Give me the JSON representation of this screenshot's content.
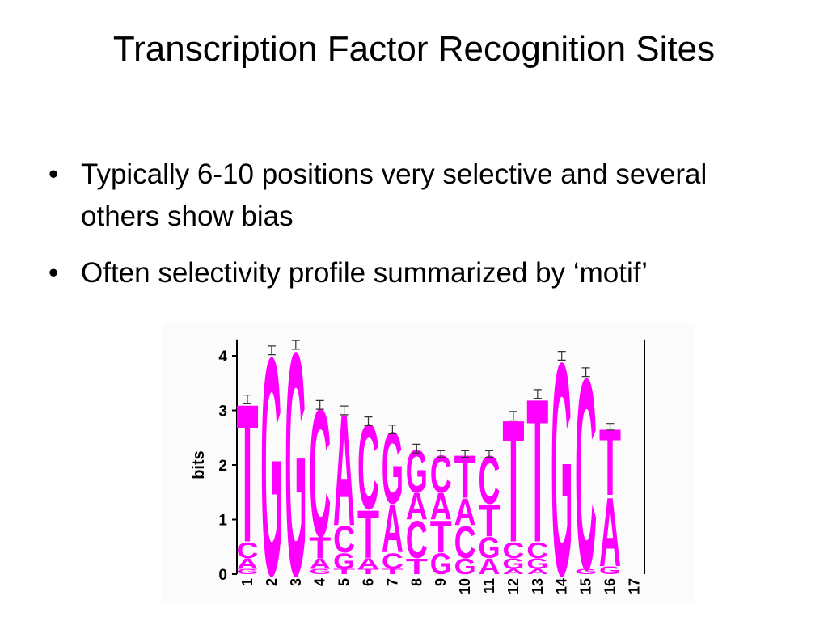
{
  "title": "Transcription Factor Recognition Sites",
  "bullets": [
    "Typically 6-10 positions very selective and several others show bias",
    "Often selectivity profile summarized by ‘motif’"
  ],
  "chart_data": {
    "type": "logo",
    "y_label": "bits",
    "color": "#ff00ff",
    "ylim": [
      0,
      4.3
    ],
    "yticks": [
      0,
      1,
      2,
      3,
      4
    ],
    "categories": [
      "1",
      "2",
      "3",
      "4",
      "5",
      "6",
      "7",
      "8",
      "9",
      "10",
      "11",
      "12",
      "13",
      "14",
      "15",
      "16",
      "17"
    ],
    "stacks": [
      [
        {
          "letter": "G",
          "height": 0.1
        },
        {
          "letter": "A",
          "height": 0.2
        },
        {
          "letter": "C",
          "height": 0.3
        },
        {
          "letter": "T",
          "height": 2.6
        }
      ],
      [
        {
          "letter": "G",
          "height": 4.1
        }
      ],
      [
        {
          "letter": "G",
          "height": 4.2
        }
      ],
      [
        {
          "letter": "G",
          "height": 0.1
        },
        {
          "letter": "A",
          "height": 0.2
        },
        {
          "letter": "T",
          "height": 0.4
        },
        {
          "letter": "C",
          "height": 2.4
        }
      ],
      [
        {
          "letter": "T",
          "height": 0.1
        },
        {
          "letter": "G",
          "height": 0.3
        },
        {
          "letter": "C",
          "height": 0.5
        },
        {
          "letter": "A",
          "height": 2.1
        }
      ],
      [
        {
          "letter": "T",
          "height": 0.1
        },
        {
          "letter": "A",
          "height": 0.2
        },
        {
          "letter": "T",
          "height": 0.9
        },
        {
          "letter": "C",
          "height": 1.6
        }
      ],
      [
        {
          "letter": "T",
          "height": 0.1
        },
        {
          "letter": "C",
          "height": 0.3
        },
        {
          "letter": "A",
          "height": 0.9
        },
        {
          "letter": "G",
          "height": 1.35
        }
      ],
      [
        {
          "letter": "T",
          "height": 0.3
        },
        {
          "letter": "C",
          "height": 0.7
        },
        {
          "letter": "A",
          "height": 0.5
        },
        {
          "letter": "G",
          "height": 0.8
        }
      ],
      [
        {
          "letter": "G",
          "height": 0.4
        },
        {
          "letter": "T",
          "height": 0.6
        },
        {
          "letter": "A",
          "height": 0.5
        },
        {
          "letter": "C",
          "height": 0.7
        }
      ],
      [
        {
          "letter": "G",
          "height": 0.3
        },
        {
          "letter": "C",
          "height": 0.6
        },
        {
          "letter": "A",
          "height": 0.5
        },
        {
          "letter": "T",
          "height": 0.8
        }
      ],
      [
        {
          "letter": "A",
          "height": 0.3
        },
        {
          "letter": "G",
          "height": 0.4
        },
        {
          "letter": "T",
          "height": 0.6
        },
        {
          "letter": "C",
          "height": 0.9
        }
      ],
      [
        {
          "letter": "A",
          "height": 0.1
        },
        {
          "letter": "G",
          "height": 0.2
        },
        {
          "letter": "C",
          "height": 0.3
        },
        {
          "letter": "T",
          "height": 2.3
        }
      ],
      [
        {
          "letter": "A",
          "height": 0.1
        },
        {
          "letter": "G",
          "height": 0.2
        },
        {
          "letter": "C",
          "height": 0.3
        },
        {
          "letter": "T",
          "height": 2.7
        }
      ],
      [
        {
          "letter": "G",
          "height": 4.0
        }
      ],
      [
        {
          "letter": "G",
          "height": 0.1
        },
        {
          "letter": "C",
          "height": 3.6
        }
      ],
      [
        {
          "letter": "G",
          "height": 0.15
        },
        {
          "letter": "A",
          "height": 1.3
        },
        {
          "letter": "T",
          "height": 1.25
        }
      ],
      []
    ],
    "errors": [
      0.08,
      0.08,
      0.08,
      0.08,
      0.08,
      0.08,
      0.08,
      0.08,
      0.06,
      0.06,
      0.06,
      0.08,
      0.08,
      0.08,
      0.08,
      0.06,
      null
    ]
  }
}
